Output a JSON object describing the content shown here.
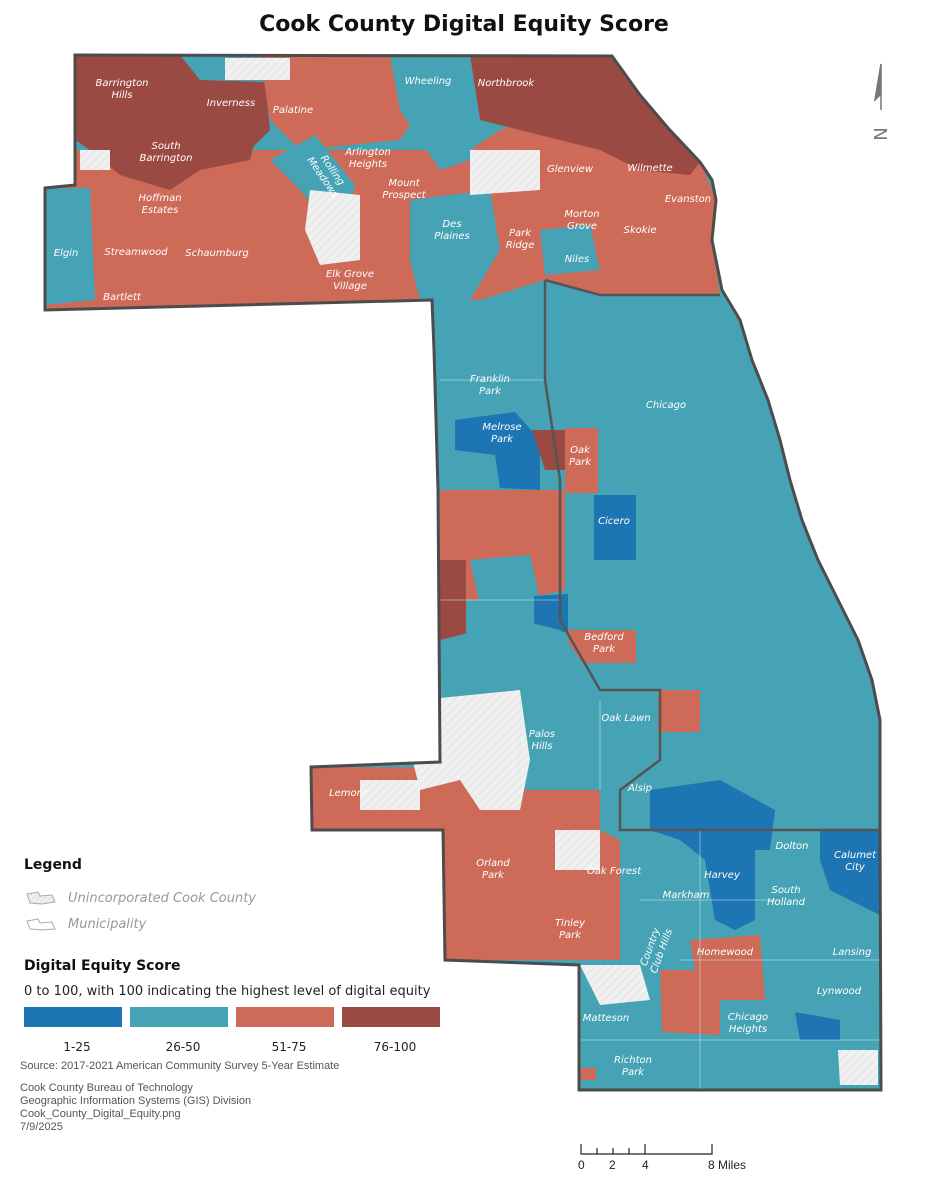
{
  "title": "Cook County Digital Equity Score",
  "colors": {
    "class_1_25": "#1d75b3",
    "class_26_50": "#46a3b5",
    "class_51_75": "#cd6a58",
    "class_76_100": "#9b4943",
    "unincorporated": "#efefef",
    "municipality": "#ffffff",
    "boundary": "#4c4c4c"
  },
  "places": [
    {
      "name": "Barrington\nHills",
      "class": "76-100"
    },
    {
      "name": "Inverness",
      "class": "76-100"
    },
    {
      "name": "Palatine",
      "class": "51-75"
    },
    {
      "name": "Wheeling",
      "class": "26-50"
    },
    {
      "name": "Northbrook",
      "class": "76-100"
    },
    {
      "name": "South\nBarrington",
      "class": "76-100"
    },
    {
      "name": "Rolling\nMeadows",
      "class": "26-50"
    },
    {
      "name": "Arlington\nHeights",
      "class": "51-75"
    },
    {
      "name": "Mount\nProspect",
      "class": "51-75"
    },
    {
      "name": "Glenview",
      "class": "51-75"
    },
    {
      "name": "Wilmette",
      "class": "76-100"
    },
    {
      "name": "Hoffman\nEstates",
      "class": "51-75"
    },
    {
      "name": "Evanston",
      "class": "51-75"
    },
    {
      "name": "Morton\nGrove",
      "class": "51-75"
    },
    {
      "name": "Skokie",
      "class": "51-75"
    },
    {
      "name": "Des\nPlaines",
      "class": "26-50"
    },
    {
      "name": "Elgin",
      "class": "26-50"
    },
    {
      "name": "Streamwood",
      "class": "51-75"
    },
    {
      "name": "Schaumburg",
      "class": "51-75"
    },
    {
      "name": "Park\nRidge",
      "class": "51-75"
    },
    {
      "name": "Niles",
      "class": "26-50"
    },
    {
      "name": "Elk Grove\nVillage",
      "class": "51-75"
    },
    {
      "name": "Bartlett",
      "class": "51-75"
    },
    {
      "name": "Franklin\nPark",
      "class": "26-50"
    },
    {
      "name": "Chicago",
      "class": "26-50"
    },
    {
      "name": "Melrose\nPark",
      "class": "1-25"
    },
    {
      "name": "Oak\nPark",
      "class": "51-75"
    },
    {
      "name": "Cicero",
      "class": "1-25"
    },
    {
      "name": "Bedford\nPark",
      "class": "51-75"
    },
    {
      "name": "Oak Lawn",
      "class": "26-50"
    },
    {
      "name": "Palos\nHills",
      "class": "26-50"
    },
    {
      "name": "Lemont",
      "class": "51-75"
    },
    {
      "name": "Alsip",
      "class": "26-50"
    },
    {
      "name": "Dolton",
      "class": "26-50"
    },
    {
      "name": "Calumet\nCity",
      "class": "1-25"
    },
    {
      "name": "Orland\nPark",
      "class": "51-75"
    },
    {
      "name": "Oak Forest",
      "class": "26-50"
    },
    {
      "name": "Harvey",
      "class": "1-25"
    },
    {
      "name": "Markham",
      "class": "26-50"
    },
    {
      "name": "South\nHolland",
      "class": "26-50"
    },
    {
      "name": "Tinley\nPark",
      "class": "51-75"
    },
    {
      "name": "Country\nClub Hills",
      "class": "26-50"
    },
    {
      "name": "Homewood",
      "class": "51-75"
    },
    {
      "name": "Lansing",
      "class": "26-50"
    },
    {
      "name": "Lynwood",
      "class": "26-50"
    },
    {
      "name": "Matteson",
      "class": "26-50"
    },
    {
      "name": "Chicago\nHeights",
      "class": "26-50"
    },
    {
      "name": "Richton\nPark",
      "class": "26-50"
    }
  ],
  "legend": {
    "title": "Legend",
    "unincorporated_label": "Unincorporated Cook County",
    "municipality_label": "Municipality",
    "score_title": "Digital Equity Score",
    "score_description": "0 to 100, with 100 indicating the highest level of digital equity",
    "classes": [
      {
        "label": "1-25",
        "color": "#1d75b3"
      },
      {
        "label": "26-50",
        "color": "#46a3b5"
      },
      {
        "label": "51-75",
        "color": "#cd6a58"
      },
      {
        "label": "76-100",
        "color": "#9b4943"
      }
    ]
  },
  "source": "Source: 2017-2021 American Community Survey 5-Year Estimate",
  "credits": [
    "Cook County Bureau of Technology",
    "Geographic Information Systems (GIS) Division",
    "Cook_County_Digital_Equity.png",
    "7/9/2025"
  ],
  "scale_bar": {
    "ticks": [
      "0",
      "2",
      "4",
      "8 Miles"
    ]
  },
  "north_arrow": {
    "label": "N",
    "icon": "north-arrow-icon"
  }
}
